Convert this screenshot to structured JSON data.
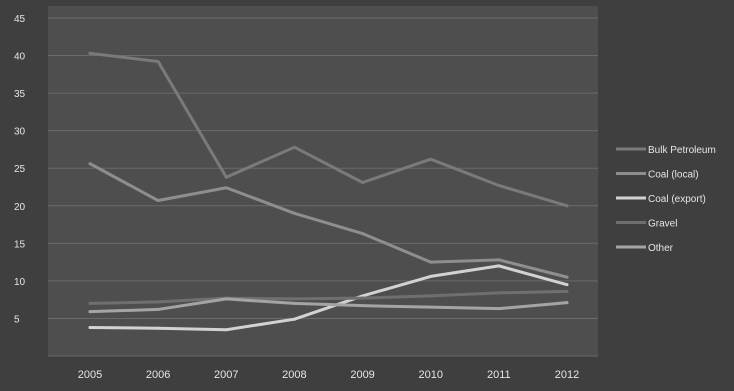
{
  "chart_data": {
    "type": "line",
    "title": "",
    "xlabel": "",
    "ylabel": "",
    "categories": [
      "2005",
      "2006",
      "2007",
      "2008",
      "2009",
      "2010",
      "2011",
      "2012"
    ],
    "ylim": [
      0,
      45
    ],
    "y_ticks": [
      "45",
      "40",
      "35",
      "30",
      "25",
      "20",
      "15",
      "10",
      "5"
    ],
    "grid": true,
    "legend_position": "right",
    "series": [
      {
        "name": "Bulk Petroleum",
        "values": [
          40.3,
          39.2,
          23.8,
          27.8,
          23.1,
          26.2,
          22.7,
          20.0
        ],
        "color": "#7a7a7a"
      },
      {
        "name": "Coal (local)",
        "values": [
          25.6,
          20.7,
          22.4,
          19.0,
          16.3,
          12.5,
          12.8,
          10.5
        ],
        "color": "#8e8e8e"
      },
      {
        "name": "Coal (export)",
        "values": [
          3.8,
          3.7,
          3.5,
          4.9,
          8.0,
          10.6,
          12.0,
          9.5
        ],
        "color": "#d2d2d2"
      },
      {
        "name": "Gravel",
        "values": [
          7.0,
          7.2,
          7.7,
          7.6,
          7.7,
          8.0,
          8.4,
          8.6
        ],
        "color": "#6f6f6f"
      },
      {
        "name": "Other",
        "values": [
          5.9,
          6.2,
          7.6,
          7.0,
          6.7,
          6.5,
          6.3,
          7.1
        ],
        "color": "#a4a4a4"
      }
    ]
  }
}
